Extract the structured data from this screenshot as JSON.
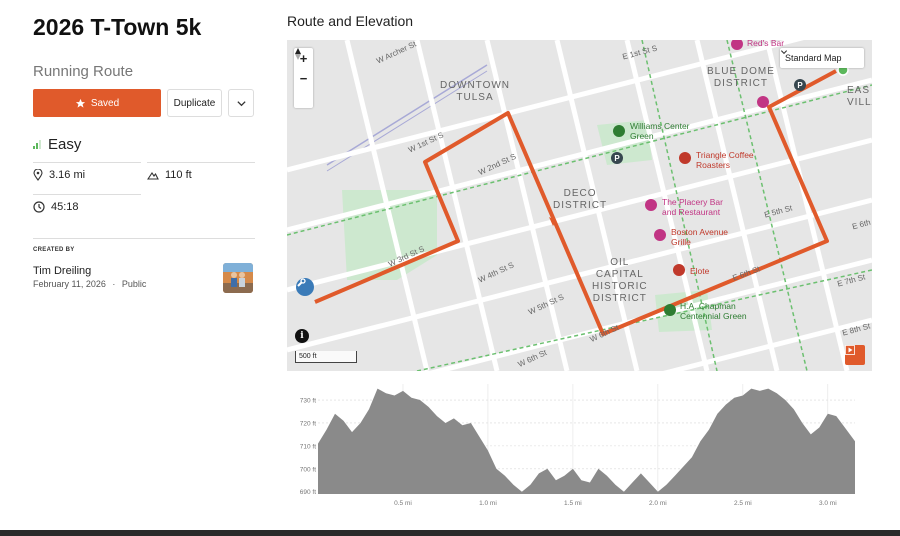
{
  "route": {
    "title": "2026 T-Town 5k",
    "kind": "Running Route",
    "saved_label": "Saved",
    "duplicate_label": "Duplicate",
    "difficulty": "Easy",
    "distance": "3.16 mi",
    "elevation_gain": "110 ft",
    "duration": "45:18"
  },
  "creator": {
    "label": "CREATED BY",
    "name": "Tim Dreiling",
    "date": "February 11, 2026",
    "separator": "·",
    "visibility": "Public"
  },
  "map": {
    "section_title": "Route and Elevation",
    "style_label": "Standard Map",
    "zoom_in": "+",
    "zoom_out": "−",
    "scale_label": "500 ft",
    "info": "i",
    "districts": {
      "downtown": "DOWNTOWN\nTULSA",
      "blue_dome": "BLUE DOME\nDISTRICT",
      "deco": "DECO\nDISTRICT",
      "oil_capital": "OIL\nCAPITAL\nHISTORIC\nDISTRICT",
      "east_village": "EAS\nVILLA"
    },
    "pois": {
      "williams": "Williams Center\nGreen",
      "triangle": "Triangle Coffee\nRoasters",
      "placery": "The Placery Bar\nand Restaurant",
      "boston": "Boston Avenue\nGrille",
      "elote": "Elote",
      "chapman": "H.A. Chapman\nCentennial Green",
      "reds": "Red's Bar"
    },
    "streets": {
      "archer": "W Archer St",
      "first_e": "E 1st St S",
      "first_w": "W 1st St S",
      "second": "W 2nd St S",
      "third": "W 3rd St S",
      "fourth": "W 4th St S",
      "fifth_w": "W 5th St S",
      "fifth_e": "E 5th St",
      "sixth_w": "W 6th St",
      "sixth_e": "E 6th St",
      "sixth_far": "E 6th",
      "sixth_bottom": "W 6th St",
      "seventh": "E 7th St",
      "eighth": "E 8th St"
    },
    "colors": {
      "route": "#e05a2b",
      "park": "#cde8cf",
      "poi_green": "#2e7d32",
      "poi_red": "#c0392b",
      "poi_pink": "#c13584",
      "parking": "#37474f"
    }
  },
  "chart_data": {
    "type": "area",
    "title": "",
    "xlabel": "",
    "ylabel": "",
    "x_ticks": [
      "0.5 mi",
      "1.0 mi",
      "1.5 mi",
      "2.0 mi",
      "2.5 mi",
      "3.0 mi"
    ],
    "y_ticks": [
      "690 ft",
      "700 ft",
      "710 ft",
      "720 ft",
      "730 ft"
    ],
    "xlim": [
      0,
      3.16
    ],
    "ylim": [
      689,
      737
    ],
    "grid": true,
    "series": [
      {
        "x": [
          0,
          0.05,
          0.1,
          0.15,
          0.2,
          0.25,
          0.3,
          0.35,
          0.4,
          0.45,
          0.5,
          0.55,
          0.6,
          0.65,
          0.7,
          0.75,
          0.8,
          0.85,
          0.9,
          0.95,
          1.0,
          1.05,
          1.1,
          1.15,
          1.2,
          1.25,
          1.3,
          1.35,
          1.4,
          1.45,
          1.5,
          1.55,
          1.6,
          1.65,
          1.7,
          1.75,
          1.8,
          1.85,
          1.9,
          1.95,
          2.0,
          2.05,
          2.1,
          2.15,
          2.2,
          2.25,
          2.3,
          2.35,
          2.4,
          2.45,
          2.5,
          2.55,
          2.6,
          2.65,
          2.7,
          2.75,
          2.8,
          2.85,
          2.9,
          2.95,
          3.0,
          3.05,
          3.1,
          3.16
        ],
        "values": [
          711,
          717,
          724,
          721,
          716,
          720,
          726,
          735,
          733,
          732,
          734,
          731,
          730,
          727,
          723,
          720,
          722,
          719,
          720,
          714,
          708,
          700,
          697,
          693,
          690,
          693,
          698,
          700,
          695,
          697,
          700,
          695,
          694,
          700,
          697,
          693,
          690,
          694,
          698,
          694,
          690,
          693,
          697,
          701,
          705,
          712,
          717,
          724,
          728,
          731,
          732,
          735,
          734,
          735,
          733,
          730,
          726,
          720,
          715,
          718,
          724,
          723,
          718,
          712
        ]
      }
    ]
  }
}
